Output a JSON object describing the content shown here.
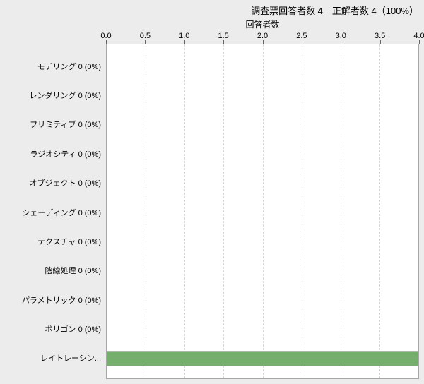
{
  "header": {
    "title": "調査票回答者数 4　正解者数 4（100%）"
  },
  "chart_data": {
    "type": "bar",
    "orientation": "horizontal",
    "title": "回答者数",
    "categories": [
      "モデリング 0 (0%)",
      "レンダリング 0 (0%)",
      "プリミティブ 0 (0%)",
      "ラジオシティ 0 (0%)",
      "オブジェクト 0 (0%)",
      "シェーディング 0 (0%)",
      "テクスチャ 0 (0%)",
      "陰線処理 0 (0%)",
      "パラメトリック 0 (0%)",
      "ポリゴン 0 (0%)",
      "レイトレーシン..."
    ],
    "values": [
      0,
      0,
      0,
      0,
      0,
      0,
      0,
      0,
      0,
      0,
      4
    ],
    "xlim": [
      0,
      4
    ],
    "x_ticks": [
      "0.0",
      "0.5",
      "1.0",
      "1.5",
      "2.0",
      "2.5",
      "3.0",
      "3.5",
      "4.0"
    ],
    "grid": "vertical-dashed",
    "legend": "none"
  },
  "colors": {
    "background": "#ececec",
    "plot_background": "#ffffff",
    "plot_border": "#a6a6a6",
    "gridline": "#d6d6d6",
    "bar": "#74b06b",
    "bar_border": "#b3b3b3",
    "tick": "#666666",
    "text": "#000000"
  }
}
